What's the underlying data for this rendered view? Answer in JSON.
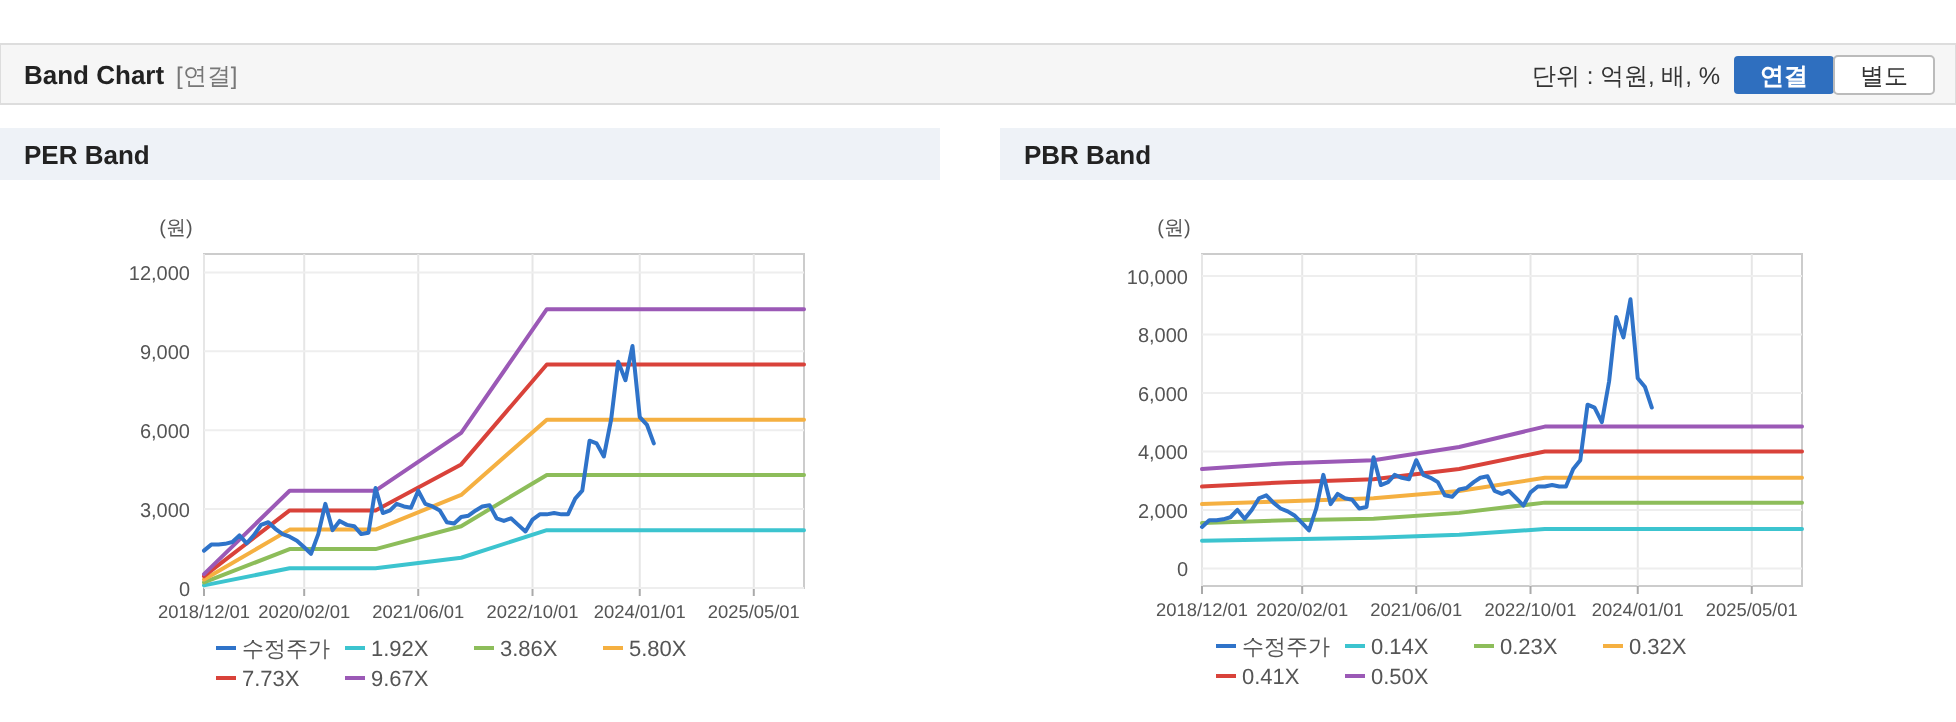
{
  "chart_data": [
    {
      "type": "line",
      "title": "PER Band",
      "ylabel": "(원)",
      "annotations": [
        "Band Chart",
        "[연결]",
        "단위 : 억원, 배, %",
        "연결",
        "별도"
      ],
      "xlim": [
        "2018-12-01",
        "2025-12-01"
      ],
      "xticks": [
        {
          "value": "2018-12-01",
          "label": "2018/12/01"
        },
        {
          "value": "2020-02-01",
          "label": "2020/02/01"
        },
        {
          "value": "2021-06-01",
          "label": "2021/06/01"
        },
        {
          "value": "2022-10-01",
          "label": "2022/10/01"
        },
        {
          "value": "2024-01-01",
          "label": "2024/01/01"
        },
        {
          "value": "2025-05-01",
          "label": "2025/05/01"
        }
      ],
      "ylim": [
        0,
        12700
      ],
      "yticks": [
        {
          "value": 0,
          "label": "0"
        },
        {
          "value": 3000,
          "label": "3,000"
        },
        {
          "value": 6000,
          "label": "6,000"
        },
        {
          "value": 9000,
          "label": "9,000"
        },
        {
          "value": 12000,
          "label": "12,000"
        }
      ],
      "grid": true,
      "legend": "bottom",
      "series": [
        {
          "name": "수정주가",
          "color": "#2f73c9",
          "x": [
            "2018-12",
            "2019-01",
            "2019-02",
            "2019-03",
            "2019-04",
            "2019-05",
            "2019-06",
            "2019-07",
            "2019-08",
            "2019-09",
            "2019-10",
            "2019-11",
            "2019-12",
            "2020-01",
            "2020-02",
            "2020-03",
            "2020-04",
            "2020-05",
            "2020-06",
            "2020-07",
            "2020-08",
            "2020-09",
            "2020-10",
            "2020-11",
            "2020-12",
            "2021-01",
            "2021-02",
            "2021-03",
            "2021-04",
            "2021-05",
            "2021-06",
            "2021-07",
            "2021-08",
            "2021-09",
            "2021-10",
            "2021-11",
            "2021-12",
            "2022-01",
            "2022-02",
            "2022-03",
            "2022-04",
            "2022-05",
            "2022-06",
            "2022-07",
            "2022-08",
            "2022-09",
            "2022-10",
            "2022-11",
            "2022-12",
            "2023-01",
            "2023-02",
            "2023-03",
            "2023-04",
            "2023-05",
            "2023-06",
            "2023-07",
            "2023-08",
            "2023-09",
            "2023-10",
            "2023-11",
            "2023-12",
            "2024-01",
            "2024-02",
            "2024-03"
          ],
          "values": [
            1420,
            1650,
            1650,
            1680,
            1750,
            2000,
            1700,
            2000,
            2400,
            2500,
            2250,
            2050,
            1950,
            1800,
            1550,
            1300,
            2050,
            3200,
            2200,
            2550,
            2400,
            2350,
            2050,
            2100,
            3800,
            2850,
            2950,
            3200,
            3100,
            3050,
            3700,
            3200,
            3100,
            2950,
            2500,
            2450,
            2700,
            2750,
            2950,
            3100,
            3150,
            2650,
            2550,
            2650,
            2400,
            2150,
            2600,
            2800,
            2800,
            2850,
            2800,
            2800,
            3400,
            3700,
            5600,
            5500,
            5000,
            6400,
            8600,
            7900,
            9200,
            6500,
            6200,
            5500
          ]
        },
        {
          "name": "1.92X",
          "color": "#3cc4cf",
          "x": [
            "2018-12",
            "2019-12",
            "2020-12",
            "2021-12",
            "2022-12",
            "2025-12"
          ],
          "values": [
            100,
            750,
            750,
            1150,
            2200,
            2200
          ]
        },
        {
          "name": "3.86X",
          "color": "#8dbd5a",
          "x": [
            "2018-12",
            "2019-12",
            "2020-12",
            "2021-12",
            "2022-12",
            "2025-12"
          ],
          "values": [
            210,
            1480,
            1480,
            2350,
            4300,
            4300
          ]
        },
        {
          "name": "5.80X",
          "color": "#f5b041",
          "x": [
            "2018-12",
            "2019-12",
            "2020-12",
            "2021-12",
            "2022-12",
            "2025-12"
          ],
          "values": [
            320,
            2220,
            2220,
            3540,
            6400,
            6400
          ]
        },
        {
          "name": "7.73X",
          "color": "#d9423a",
          "x": [
            "2018-12",
            "2019-12",
            "2020-12",
            "2021-12",
            "2022-12",
            "2025-12"
          ],
          "values": [
            450,
            2950,
            2950,
            4700,
            8500,
            8500
          ]
        },
        {
          "name": "9.67X",
          "color": "#9b59b6",
          "x": [
            "2018-12",
            "2019-12",
            "2020-12",
            "2021-12",
            "2022-12",
            "2025-12"
          ],
          "values": [
            530,
            3700,
            3700,
            5900,
            10600,
            10600
          ]
        }
      ]
    },
    {
      "type": "line",
      "title": "PBR Band",
      "ylabel": "(원)",
      "xlim": [
        "2018-12-01",
        "2025-12-01"
      ],
      "xticks": [
        {
          "value": "2018-12-01",
          "label": "2018/12/01"
        },
        {
          "value": "2020-02-01",
          "label": "2020/02/01"
        },
        {
          "value": "2021-06-01",
          "label": "2021/06/01"
        },
        {
          "value": "2022-10-01",
          "label": "2022/10/01"
        },
        {
          "value": "2024-01-01",
          "label": "2024/01/01"
        },
        {
          "value": "2025-05-01",
          "label": "2025/05/01"
        }
      ],
      "ylim": [
        -600,
        10750
      ],
      "yticks": [
        {
          "value": 0,
          "label": "0"
        },
        {
          "value": 2000,
          "label": "2,000"
        },
        {
          "value": 4000,
          "label": "4,000"
        },
        {
          "value": 6000,
          "label": "6,000"
        },
        {
          "value": 8000,
          "label": "8,000"
        },
        {
          "value": 10000,
          "label": "10,000"
        }
      ],
      "grid": true,
      "legend": "bottom",
      "series": [
        {
          "name": "수정주가",
          "color": "#2f73c9",
          "x": [
            "2018-12",
            "2019-01",
            "2019-02",
            "2019-03",
            "2019-04",
            "2019-05",
            "2019-06",
            "2019-07",
            "2019-08",
            "2019-09",
            "2019-10",
            "2019-11",
            "2019-12",
            "2020-01",
            "2020-02",
            "2020-03",
            "2020-04",
            "2020-05",
            "2020-06",
            "2020-07",
            "2020-08",
            "2020-09",
            "2020-10",
            "2020-11",
            "2020-12",
            "2021-01",
            "2021-02",
            "2021-03",
            "2021-04",
            "2021-05",
            "2021-06",
            "2021-07",
            "2021-08",
            "2021-09",
            "2021-10",
            "2021-11",
            "2021-12",
            "2022-01",
            "2022-02",
            "2022-03",
            "2022-04",
            "2022-05",
            "2022-06",
            "2022-07",
            "2022-08",
            "2022-09",
            "2022-10",
            "2022-11",
            "2022-12",
            "2023-01",
            "2023-02",
            "2023-03",
            "2023-04",
            "2023-05",
            "2023-06",
            "2023-07",
            "2023-08",
            "2023-09",
            "2023-10",
            "2023-11",
            "2023-12",
            "2024-01",
            "2024-02",
            "2024-03"
          ],
          "values": [
            1420,
            1650,
            1650,
            1680,
            1750,
            2000,
            1700,
            2000,
            2400,
            2500,
            2250,
            2050,
            1950,
            1800,
            1550,
            1300,
            2050,
            3200,
            2200,
            2550,
            2400,
            2350,
            2050,
            2100,
            3800,
            2850,
            2950,
            3200,
            3100,
            3050,
            3700,
            3200,
            3100,
            2950,
            2500,
            2450,
            2700,
            2750,
            2950,
            3100,
            3150,
            2650,
            2550,
            2650,
            2400,
            2150,
            2600,
            2800,
            2800,
            2850,
            2800,
            2800,
            3400,
            3700,
            5600,
            5500,
            5000,
            6400,
            8600,
            7900,
            9200,
            6500,
            6200,
            5500
          ]
        },
        {
          "name": "0.14X",
          "color": "#3cc4cf",
          "x": [
            "2018-12",
            "2019-12",
            "2020-12",
            "2021-12",
            "2022-12",
            "2025-12"
          ],
          "values": [
            950,
            1000,
            1050,
            1150,
            1350,
            1350
          ]
        },
        {
          "name": "0.23X",
          "color": "#8dbd5a",
          "x": [
            "2018-12",
            "2019-12",
            "2020-12",
            "2021-12",
            "2022-12",
            "2025-12"
          ],
          "values": [
            1550,
            1650,
            1700,
            1900,
            2250,
            2250
          ]
        },
        {
          "name": "0.32X",
          "color": "#f5b041",
          "x": [
            "2018-12",
            "2019-12",
            "2020-12",
            "2021-12",
            "2022-12",
            "2025-12"
          ],
          "values": [
            2200,
            2300,
            2400,
            2650,
            3100,
            3100
          ]
        },
        {
          "name": "0.41X",
          "color": "#d9423a",
          "x": [
            "2018-12",
            "2019-12",
            "2020-12",
            "2021-12",
            "2022-12",
            "2025-12"
          ],
          "values": [
            2800,
            2950,
            3050,
            3400,
            4000,
            4000
          ]
        },
        {
          "name": "0.50X",
          "color": "#9b59b6",
          "x": [
            "2018-12",
            "2019-12",
            "2020-12",
            "2021-12",
            "2022-12",
            "2025-12"
          ],
          "values": [
            3400,
            3600,
            3700,
            4150,
            4850,
            4850
          ]
        }
      ]
    }
  ]
}
